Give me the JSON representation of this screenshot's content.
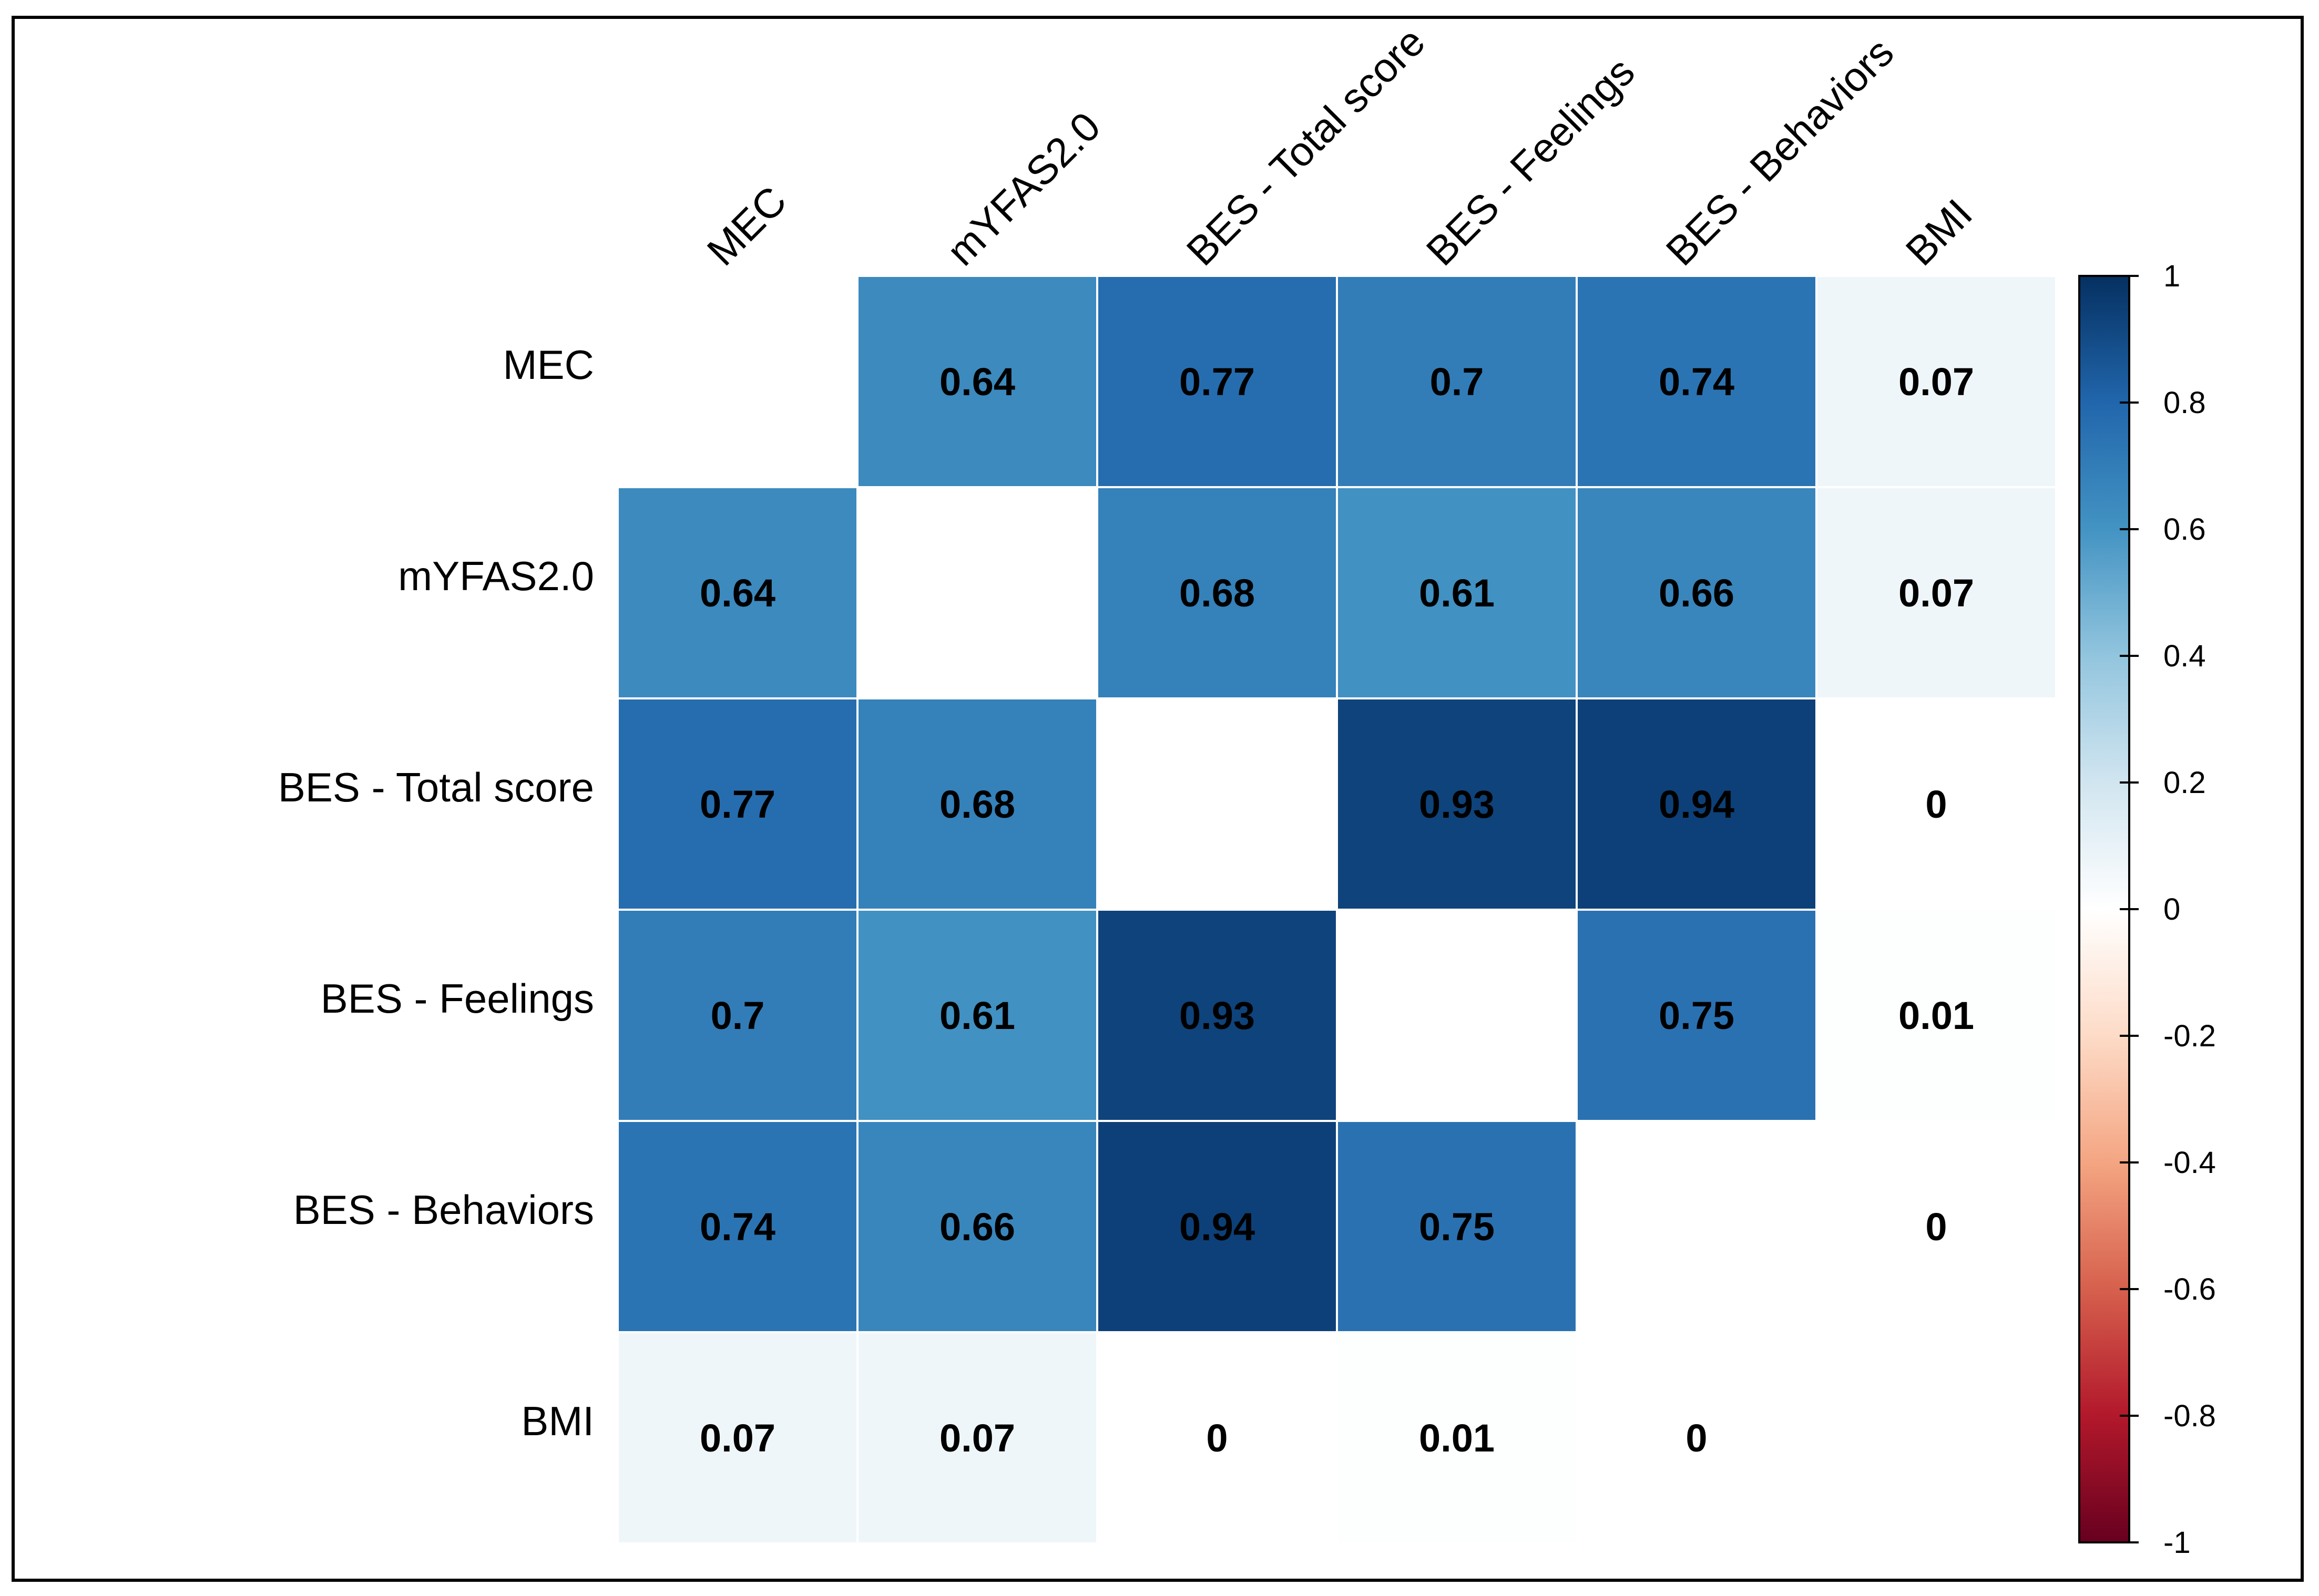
{
  "chart_data": {
    "type": "heatmap",
    "variables": [
      "MEC",
      "mYFAS2.0",
      "BES - Total score",
      "BES - Feelings",
      "BES - Behaviors",
      "BMI"
    ],
    "matrix": [
      [
        null,
        0.64,
        0.77,
        0.7,
        0.74,
        0.07
      ],
      [
        0.64,
        null,
        0.68,
        0.61,
        0.66,
        0.07
      ],
      [
        0.77,
        0.68,
        null,
        0.93,
        0.94,
        0
      ],
      [
        0.7,
        0.61,
        0.93,
        null,
        0.75,
        0.01
      ],
      [
        0.74,
        0.66,
        0.94,
        0.75,
        null,
        0
      ],
      [
        0.07,
        0.07,
        0,
        0.01,
        0,
        null
      ]
    ],
    "colorbar": {
      "range": [
        -1,
        1
      ],
      "ticks": [
        "1",
        "0.8",
        "0.6",
        "0.4",
        "0.2",
        "0",
        "-0.2",
        "-0.4",
        "-0.6",
        "-0.8",
        "-1"
      ],
      "colors": {
        "negative": "#67001f",
        "zero": "#ffffff",
        "positive": "#053061"
      }
    },
    "diagonal_empty": true,
    "grid": true
  }
}
